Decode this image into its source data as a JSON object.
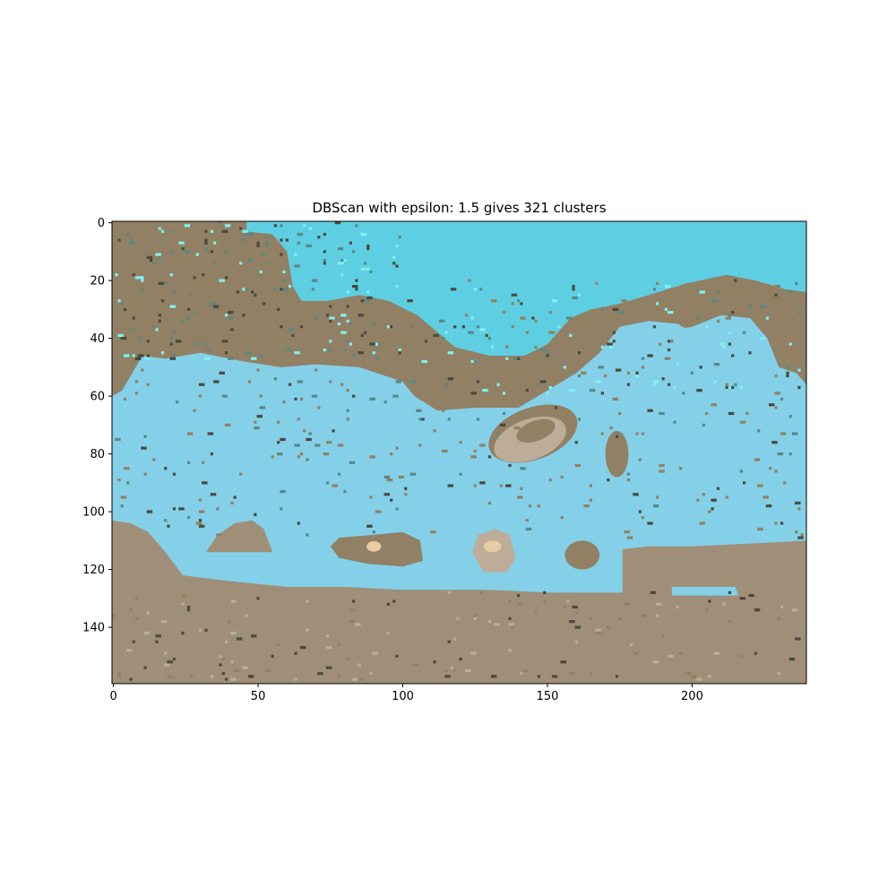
{
  "chart_data": {
    "type": "heatmap",
    "title": "DBScan with epsilon: 1.5 gives 321 clusters",
    "xlabel": "",
    "ylabel": "",
    "image_width": 240,
    "image_height": 160,
    "xlim": [
      -0.5,
      239.5
    ],
    "ylim": [
      159.5,
      -0.5
    ],
    "xticks": [
      0,
      50,
      100,
      150,
      200
    ],
    "yticks": [
      0,
      20,
      40,
      60,
      80,
      100,
      120,
      140
    ],
    "grid": false,
    "legend": "none",
    "colors": {
      "water_top": "#5ecfe2",
      "water_main": "#84d0e8",
      "land_brown": "#918064",
      "sand_ground": "#a08f78",
      "rock_light": "#bdad98",
      "rock_tan": "#e8cda4",
      "cyan_speck": "#80f0f4",
      "teal_speck": "#5a8884",
      "dark_speck": "#4a4a3c"
    },
    "regions": [
      {
        "name": "upper-land",
        "color_key": "land_brown",
        "rows": [
          0,
          64
        ],
        "cols": [
          0,
          239
        ]
      },
      {
        "name": "upper-water",
        "color_key": "water_top",
        "rows": [
          0,
          46
        ],
        "cols": [
          46,
          239
        ]
      },
      {
        "name": "central-water",
        "color_key": "water_main",
        "rows": [
          38,
          128
        ],
        "cols": [
          0,
          239
        ]
      },
      {
        "name": "lower-ground",
        "color_key": "sand_ground",
        "rows": [
          102,
          159
        ],
        "cols": [
          0,
          239
        ]
      },
      {
        "name": "left-mound",
        "color_key": "sand_ground",
        "rows": [
          103,
          115
        ],
        "cols": [
          32,
          55
        ]
      },
      {
        "name": "center-blob-1",
        "color_key": "land_brown",
        "rows": [
          107,
          118
        ],
        "cols": [
          75,
          107
        ]
      },
      {
        "name": "center-blob-2",
        "color_key": "rock_light",
        "rows": [
          106,
          121
        ],
        "cols": [
          124,
          138
        ]
      },
      {
        "name": "rock-ellipse",
        "color_key": "rock_light",
        "rows": [
          62,
          85
        ],
        "cols": [
          130,
          160
        ]
      },
      {
        "name": "right-shelf",
        "color_key": "sand_ground",
        "rows": [
          110,
          128
        ],
        "cols": [
          176,
          239
        ]
      },
      {
        "name": "right-pool",
        "color_key": "water_main",
        "rows": [
          126,
          129
        ],
        "cols": [
          193,
          215
        ]
      }
    ]
  }
}
